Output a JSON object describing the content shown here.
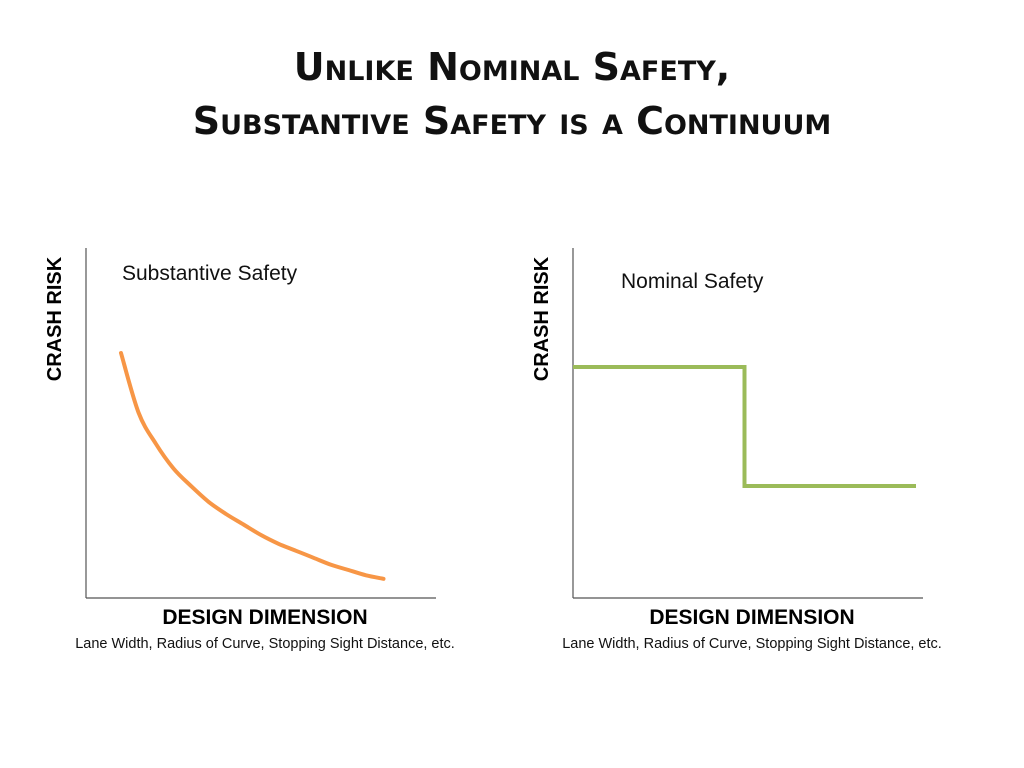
{
  "slide": {
    "title_line1": "Unlike Nominal Safety,",
    "title_line2": "Substantive Safety is a Continuum"
  },
  "chart_data": [
    {
      "type": "line",
      "title": "Substantive  Safety",
      "ylabel": "CRASH RISK",
      "xlabel": "DESIGN DIMENSION",
      "xlabel_subtitle": "Lane Width, Radius of Curve, Stopping Sight Distance, etc.",
      "grid": false,
      "xlim": [
        0,
        100
      ],
      "ylim": [
        0,
        100
      ],
      "series": [
        {
          "color": "#F79646",
          "x": [
            10,
            15,
            20,
            25,
            30,
            35,
            40,
            45,
            50,
            55,
            60,
            65,
            70,
            75,
            80,
            85
          ],
          "y": [
            70,
            53,
            44,
            37,
            32,
            27.5,
            24,
            21,
            18,
            15.5,
            13.5,
            11.5,
            9.5,
            8,
            6.5,
            5.5
          ]
        }
      ]
    },
    {
      "type": "line",
      "title": "Nominal  Safety",
      "ylabel": "CRASH RISK",
      "xlabel": "DESIGN DIMENSION",
      "xlabel_subtitle": "Lane Width, Radius of Curve, Stopping Sight Distance, etc.",
      "grid": false,
      "xlim": [
        0,
        100
      ],
      "ylim": [
        0,
        100
      ],
      "series": [
        {
          "color": "#9BBB59",
          "x": [
            0,
            49,
            49,
            98
          ],
          "y": [
            66,
            66,
            32,
            32
          ]
        }
      ]
    }
  ]
}
